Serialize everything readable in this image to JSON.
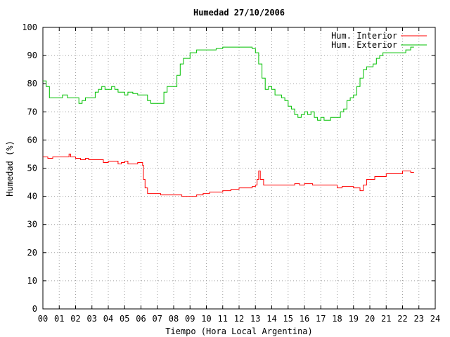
{
  "chart_data": {
    "type": "line",
    "title": "Humedad 27/10/2006",
    "xlabel": "Tiempo (Hora Local Argentina)",
    "ylabel": "Humedad (%)",
    "xlim": [
      0,
      24
    ],
    "ylim": [
      0,
      100
    ],
    "x_ticks": [
      "00",
      "01",
      "02",
      "03",
      "04",
      "05",
      "06",
      "07",
      "08",
      "09",
      "10",
      "11",
      "12",
      "13",
      "14",
      "15",
      "16",
      "17",
      "18",
      "19",
      "20",
      "21",
      "22",
      "23",
      "24"
    ],
    "y_ticks": [
      "0",
      "10",
      "20",
      "30",
      "40",
      "50",
      "60",
      "70",
      "80",
      "90",
      "100"
    ],
    "grid": true,
    "legend_position": "top-right",
    "series": [
      {
        "name": "Hum. Interior",
        "color": "#ff0000",
        "points": [
          [
            0.0,
            54
          ],
          [
            0.3,
            53.5
          ],
          [
            0.6,
            54
          ],
          [
            1.0,
            54
          ],
          [
            1.5,
            54
          ],
          [
            1.6,
            55
          ],
          [
            1.7,
            54
          ],
          [
            2.0,
            53.5
          ],
          [
            2.3,
            53
          ],
          [
            2.6,
            53.5
          ],
          [
            2.8,
            53
          ],
          [
            3.0,
            53
          ],
          [
            3.4,
            53
          ],
          [
            3.7,
            52
          ],
          [
            4.0,
            52.5
          ],
          [
            4.4,
            52.5
          ],
          [
            4.6,
            51.5
          ],
          [
            4.8,
            52
          ],
          [
            5.0,
            52.5
          ],
          [
            5.2,
            51.5
          ],
          [
            5.5,
            51.5
          ],
          [
            5.8,
            52
          ],
          [
            6.1,
            51
          ],
          [
            6.15,
            46
          ],
          [
            6.25,
            43
          ],
          [
            6.4,
            41
          ],
          [
            6.8,
            41
          ],
          [
            7.2,
            40.5
          ],
          [
            7.6,
            40.5
          ],
          [
            8.0,
            40.5
          ],
          [
            8.5,
            40
          ],
          [
            9.0,
            40
          ],
          [
            9.4,
            40.5
          ],
          [
            9.8,
            41
          ],
          [
            10.2,
            41.5
          ],
          [
            10.6,
            41.5
          ],
          [
            11.0,
            42
          ],
          [
            11.5,
            42.5
          ],
          [
            12.0,
            43
          ],
          [
            12.5,
            43
          ],
          [
            12.8,
            43.5
          ],
          [
            13.0,
            44
          ],
          [
            13.1,
            46
          ],
          [
            13.2,
            49
          ],
          [
            13.3,
            46
          ],
          [
            13.5,
            44
          ],
          [
            14.0,
            44
          ],
          [
            14.5,
            44
          ],
          [
            15.0,
            44
          ],
          [
            15.4,
            44.5
          ],
          [
            15.7,
            44
          ],
          [
            16.0,
            44.5
          ],
          [
            16.5,
            44
          ],
          [
            17.0,
            44
          ],
          [
            17.5,
            44
          ],
          [
            18.0,
            43
          ],
          [
            18.3,
            43.5
          ],
          [
            18.7,
            43.5
          ],
          [
            19.0,
            43
          ],
          [
            19.4,
            42
          ],
          [
            19.6,
            44
          ],
          [
            19.8,
            46
          ],
          [
            20.0,
            46
          ],
          [
            20.3,
            47
          ],
          [
            20.7,
            47
          ],
          [
            21.0,
            48
          ],
          [
            21.5,
            48
          ],
          [
            22.0,
            49
          ],
          [
            22.5,
            48.5
          ],
          [
            22.7,
            48.5
          ]
        ]
      },
      {
        "name": "Hum. Exterior",
        "color": "#00c000",
        "points": [
          [
            0.0,
            81
          ],
          [
            0.2,
            79
          ],
          [
            0.4,
            75
          ],
          [
            0.8,
            75
          ],
          [
            1.0,
            75
          ],
          [
            1.2,
            76
          ],
          [
            1.5,
            75
          ],
          [
            2.0,
            75
          ],
          [
            2.2,
            73
          ],
          [
            2.4,
            74
          ],
          [
            2.6,
            75
          ],
          [
            3.0,
            75
          ],
          [
            3.2,
            77
          ],
          [
            3.4,
            78
          ],
          [
            3.6,
            79
          ],
          [
            3.8,
            78
          ],
          [
            4.0,
            78
          ],
          [
            4.2,
            79
          ],
          [
            4.4,
            78
          ],
          [
            4.6,
            77
          ],
          [
            4.8,
            77
          ],
          [
            5.0,
            76
          ],
          [
            5.2,
            77
          ],
          [
            5.5,
            76.5
          ],
          [
            5.8,
            76
          ],
          [
            6.1,
            76
          ],
          [
            6.4,
            74
          ],
          [
            6.6,
            73
          ],
          [
            7.0,
            73
          ],
          [
            7.2,
            73
          ],
          [
            7.4,
            77
          ],
          [
            7.6,
            79
          ],
          [
            7.8,
            79
          ],
          [
            8.0,
            79
          ],
          [
            8.2,
            83
          ],
          [
            8.4,
            87
          ],
          [
            8.6,
            89
          ],
          [
            8.8,
            89
          ],
          [
            9.0,
            91
          ],
          [
            9.2,
            91
          ],
          [
            9.4,
            92
          ],
          [
            9.8,
            92
          ],
          [
            10.2,
            92
          ],
          [
            10.6,
            92.5
          ],
          [
            11.0,
            93
          ],
          [
            11.5,
            93
          ],
          [
            12.0,
            93
          ],
          [
            12.5,
            93
          ],
          [
            12.8,
            92.5
          ],
          [
            13.0,
            91
          ],
          [
            13.2,
            87
          ],
          [
            13.4,
            82
          ],
          [
            13.6,
            78
          ],
          [
            13.8,
            79
          ],
          [
            14.0,
            78
          ],
          [
            14.2,
            76
          ],
          [
            14.4,
            76
          ],
          [
            14.6,
            75
          ],
          [
            14.8,
            74
          ],
          [
            15.0,
            72
          ],
          [
            15.2,
            71
          ],
          [
            15.4,
            69
          ],
          [
            15.6,
            68
          ],
          [
            15.8,
            69
          ],
          [
            16.0,
            70
          ],
          [
            16.2,
            69
          ],
          [
            16.4,
            70
          ],
          [
            16.6,
            68
          ],
          [
            16.8,
            67
          ],
          [
            17.0,
            68
          ],
          [
            17.2,
            67
          ],
          [
            17.4,
            67
          ],
          [
            17.6,
            68
          ],
          [
            17.8,
            68
          ],
          [
            18.0,
            68
          ],
          [
            18.2,
            70
          ],
          [
            18.4,
            71
          ],
          [
            18.6,
            74
          ],
          [
            18.8,
            75
          ],
          [
            19.0,
            76
          ],
          [
            19.2,
            79
          ],
          [
            19.4,
            82
          ],
          [
            19.6,
            85
          ],
          [
            19.8,
            86
          ],
          [
            20.0,
            86
          ],
          [
            20.2,
            87
          ],
          [
            20.4,
            89
          ],
          [
            20.6,
            90
          ],
          [
            20.8,
            91
          ],
          [
            21.0,
            91
          ],
          [
            21.5,
            91
          ],
          [
            22.0,
            91
          ],
          [
            22.2,
            92
          ],
          [
            22.5,
            93
          ],
          [
            22.7,
            93
          ]
        ]
      }
    ]
  }
}
